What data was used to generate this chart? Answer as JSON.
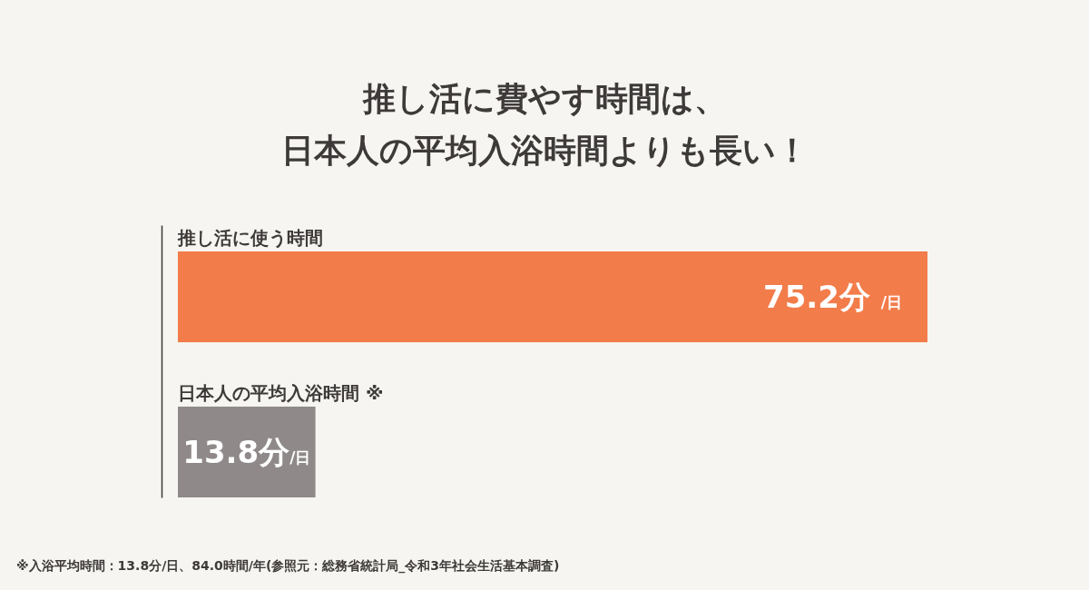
{
  "chart_data": {
    "type": "bar",
    "orientation": "horizontal",
    "title": "推し活に費やす時間は、日本人の平均入浴時間よりも長い！",
    "categories": [
      "推し活に使う時間",
      "日本人の平均入浴時間 ※"
    ],
    "values": [
      75.2,
      13.8
    ],
    "colors": [
      "#f27c4a",
      "#8f8a89"
    ],
    "value_labels": [
      "75.2分 /日",
      "13.8分/日"
    ],
    "tick_labels": "y",
    "annotations": [
      "※入浴平均時間：13.8分/日、84.0時間/年(参照元：総務省統計局_令和3年社会生活基本調査)"
    ]
  }
}
